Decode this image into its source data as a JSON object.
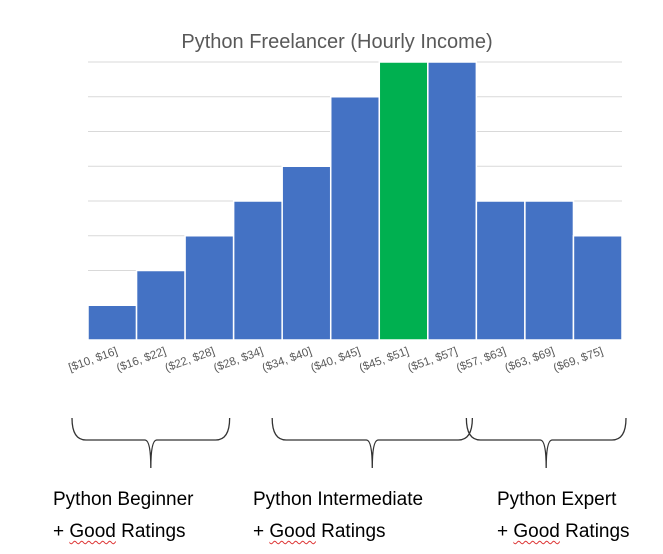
{
  "chart_data": {
    "type": "bar",
    "title": "Python Freelancer (Hourly Income)",
    "xlabel": "",
    "ylabel": "",
    "ylim": [
      0,
      8
    ],
    "grid": true,
    "categories": [
      "[$10, $16]",
      "($16, $22]",
      "($22, $28]",
      "($28, $34]",
      "($34, $40]",
      "($40, $45]",
      "($45, $51]",
      "($51, $57]",
      "($57, $63]",
      "($63, $69]",
      "($69, $75]"
    ],
    "values": [
      1,
      2,
      3,
      4,
      5,
      7,
      8,
      8,
      4,
      4,
      3
    ],
    "highlight_index": 6,
    "colors": {
      "bar": "#4472c4",
      "highlight": "#00b050"
    }
  },
  "groups": [
    {
      "line1": "Python Beginner",
      "plus": "+ ",
      "good": "Good",
      "ratings": " Ratings",
      "start": 0,
      "end": 2
    },
    {
      "line1": "Python Intermediate",
      "plus": "+ ",
      "good": "Good",
      "ratings": " Ratings",
      "start": 4,
      "end": 7
    },
    {
      "line1": "Python Expert",
      "plus": "+ ",
      "good": "Good",
      "ratings": " Ratings",
      "start": 8,
      "end": 10
    }
  ]
}
